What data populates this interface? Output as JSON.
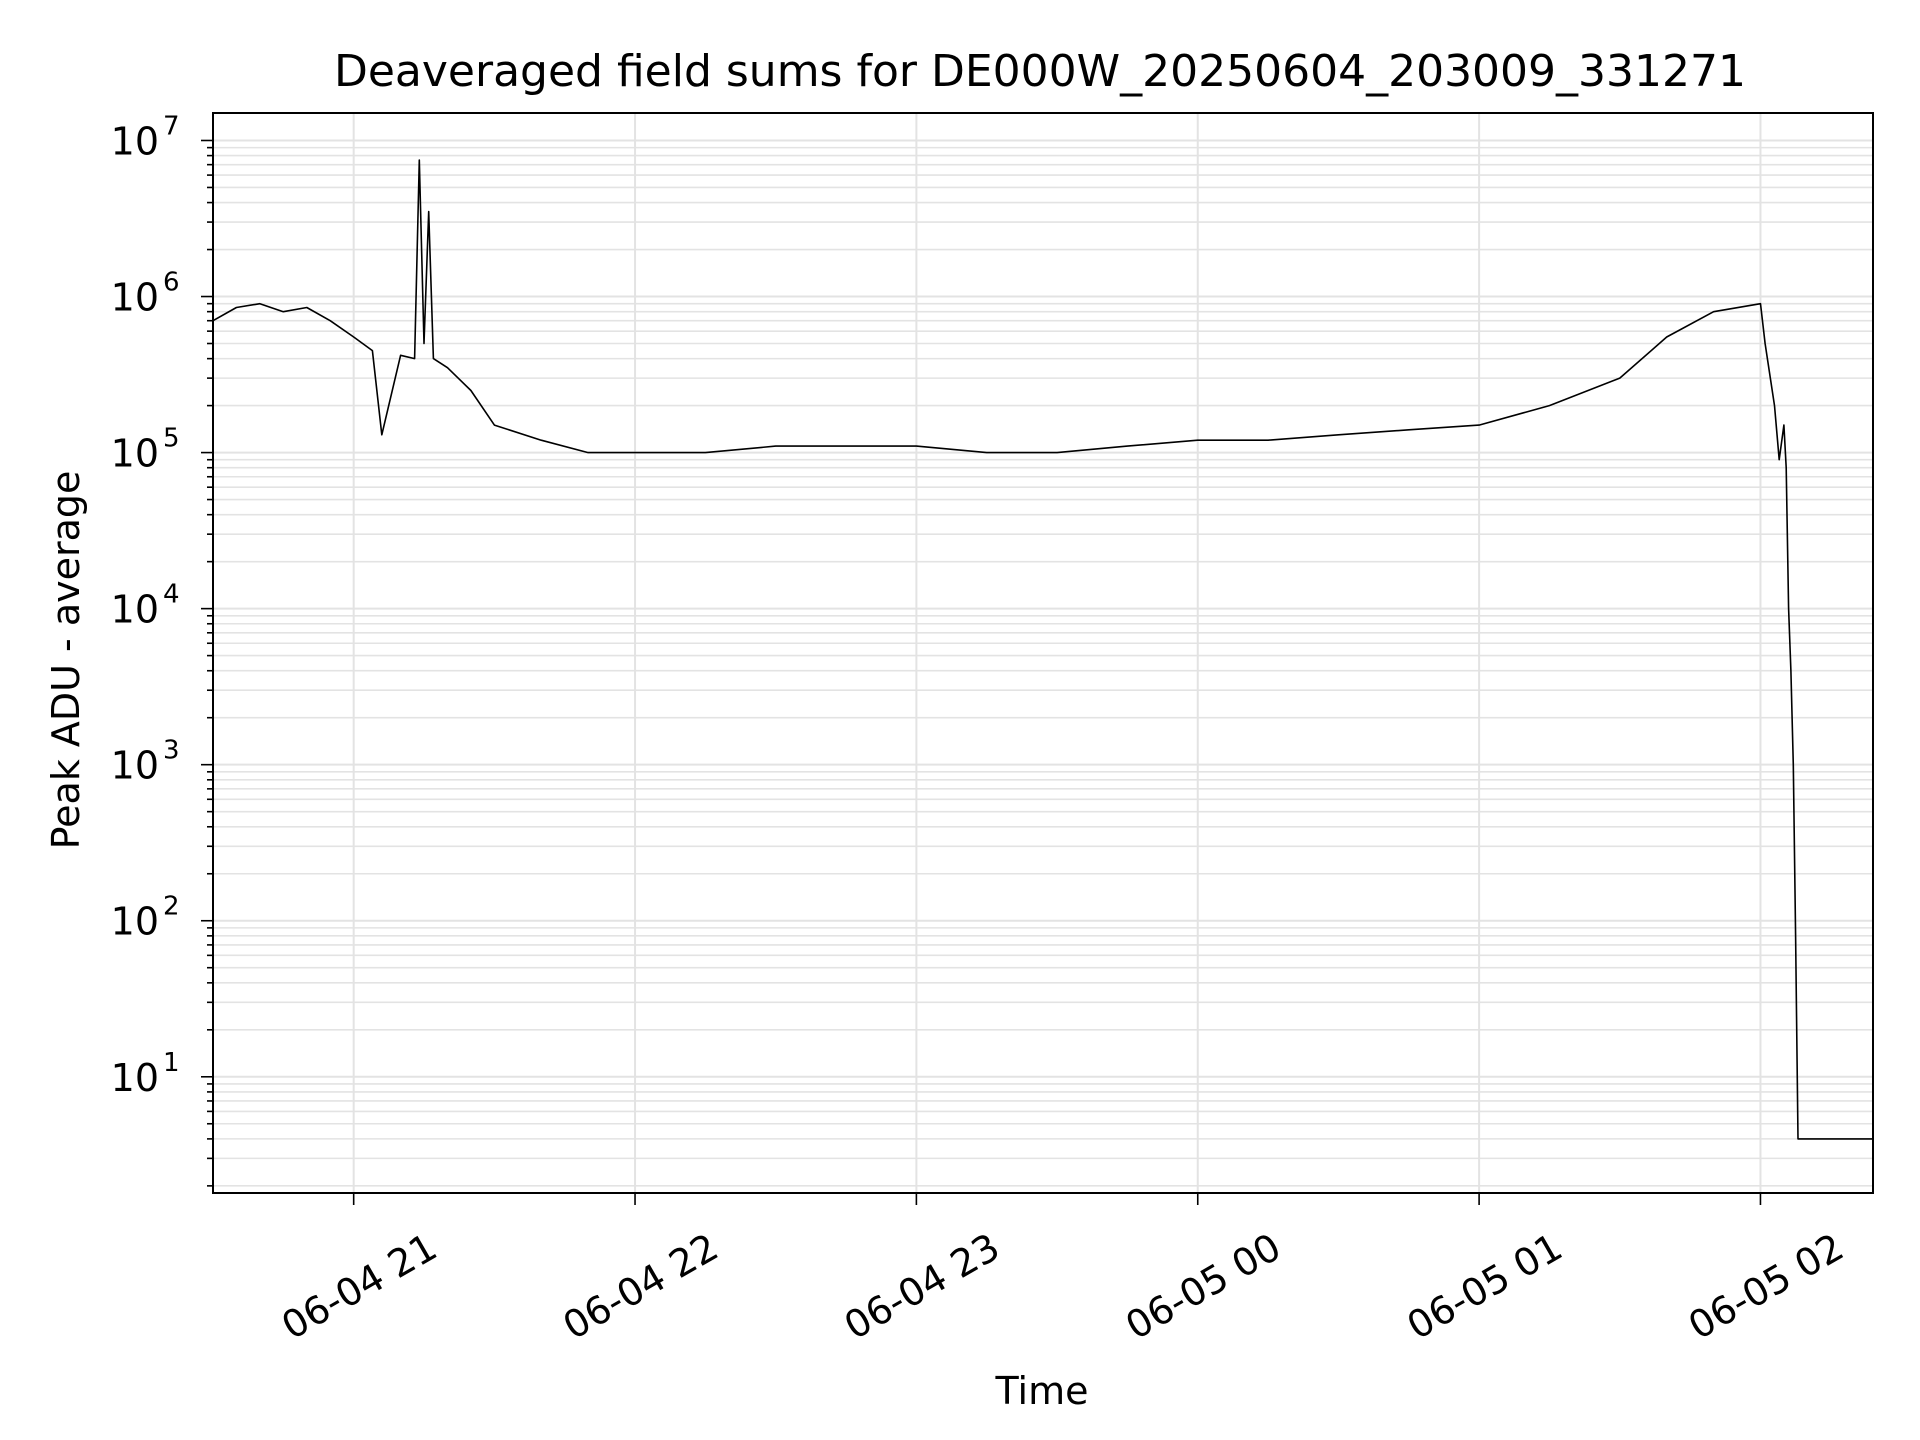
{
  "chart_data": {
    "type": "line",
    "title": "Deaveraged field sums for DE000W_20250604_203009_331271",
    "xlabel": "Time",
    "ylabel": "Peak ADU - average",
    "yscale": "log",
    "ylim": [
      1.8,
      15000000
    ],
    "xlim": [
      "2025-06-04 20:30",
      "2025-06-05 02:24"
    ],
    "grid": "on (major and minor, light gray)",
    "line_color": "#000000",
    "x_ticks": [
      {
        "label": "06-04 21",
        "time": "2025-06-04 21:00"
      },
      {
        "label": "06-04 22",
        "time": "2025-06-04 22:00"
      },
      {
        "label": "06-04 23",
        "time": "2025-06-04 23:00"
      },
      {
        "label": "06-05 00",
        "time": "2025-06-05 00:00"
      },
      {
        "label": "06-05 01",
        "time": "2025-06-05 01:00"
      },
      {
        "label": "06-05 02",
        "time": "2025-06-05 02:00"
      }
    ],
    "y_ticks": [
      {
        "base": "10",
        "exp": "1",
        "value": 10
      },
      {
        "base": "10",
        "exp": "2",
        "value": 100
      },
      {
        "base": "10",
        "exp": "3",
        "value": 1000
      },
      {
        "base": "10",
        "exp": "4",
        "value": 10000
      },
      {
        "base": "10",
        "exp": "5",
        "value": 100000
      },
      {
        "base": "10",
        "exp": "6",
        "value": 1000000
      },
      {
        "base": "10",
        "exp": "7",
        "value": 10000000
      }
    ],
    "series": [
      {
        "values": [
          [
            "2025-06-04 20:30",
            700000
          ],
          [
            "2025-06-04 20:35",
            850000
          ],
          [
            "2025-06-04 20:40",
            900000
          ],
          [
            "2025-06-04 20:45",
            800000
          ],
          [
            "2025-06-04 20:50",
            850000
          ],
          [
            "2025-06-04 20:55",
            700000
          ],
          [
            "2025-06-04 21:00",
            550000
          ],
          [
            "2025-06-04 21:04",
            450000
          ],
          [
            "2025-06-04 21:06",
            130000
          ],
          [
            "2025-06-04 21:10",
            420000
          ],
          [
            "2025-06-04 21:13",
            400000
          ],
          [
            "2025-06-04 21:14",
            7500000
          ],
          [
            "2025-06-04 21:15",
            500000
          ],
          [
            "2025-06-04 21:16",
            3500000
          ],
          [
            "2025-06-04 21:17",
            400000
          ],
          [
            "2025-06-04 21:20",
            350000
          ],
          [
            "2025-06-04 21:25",
            250000
          ],
          [
            "2025-06-04 21:30",
            150000
          ],
          [
            "2025-06-04 21:40",
            120000
          ],
          [
            "2025-06-04 21:50",
            100000
          ],
          [
            "2025-06-04 22:00",
            100000
          ],
          [
            "2025-06-04 22:15",
            100000
          ],
          [
            "2025-06-04 22:30",
            110000
          ],
          [
            "2025-06-04 22:45",
            110000
          ],
          [
            "2025-06-04 23:00",
            110000
          ],
          [
            "2025-06-04 23:15",
            100000
          ],
          [
            "2025-06-04 23:30",
            100000
          ],
          [
            "2025-06-04 23:45",
            110000
          ],
          [
            "2025-06-05 00:00",
            120000
          ],
          [
            "2025-06-05 00:15",
            120000
          ],
          [
            "2025-06-05 00:30",
            130000
          ],
          [
            "2025-06-05 00:45",
            140000
          ],
          [
            "2025-06-05 01:00",
            150000
          ],
          [
            "2025-06-05 01:15",
            200000
          ],
          [
            "2025-06-05 01:30",
            300000
          ],
          [
            "2025-06-05 01:40",
            550000
          ],
          [
            "2025-06-05 01:50",
            800000
          ],
          [
            "2025-06-05 02:00",
            900000
          ],
          [
            "2025-06-05 02:01",
            500000
          ],
          [
            "2025-06-05 02:03",
            200000
          ],
          [
            "2025-06-05 02:04",
            90000
          ],
          [
            "2025-06-05 02:05",
            150000
          ],
          [
            "2025-06-05 02:05:30",
            80000
          ],
          [
            "2025-06-05 02:06",
            10000
          ],
          [
            "2025-06-05 02:06:30",
            4000
          ],
          [
            "2025-06-05 02:07",
            1000
          ],
          [
            "2025-06-05 02:07:30",
            80
          ],
          [
            "2025-06-05 02:08",
            4
          ],
          [
            "2025-06-05 02:24",
            4
          ]
        ]
      }
    ]
  }
}
